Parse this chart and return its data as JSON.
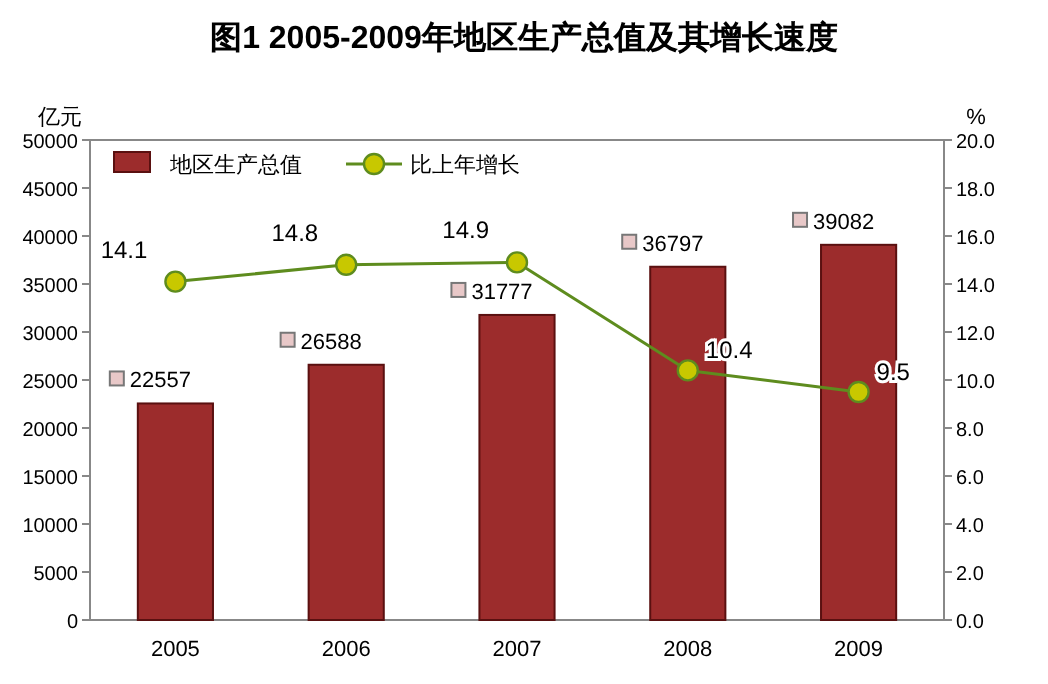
{
  "chart_data": {
    "type": "bar",
    "title": "图1 2005-2009年地区生产总值及其增长速度",
    "ylabel": "亿元",
    "y2label": "%",
    "categories": [
      "2005",
      "2006",
      "2007",
      "2008",
      "2009"
    ],
    "series": [
      {
        "name": "地区生产总值",
        "color": "#9c2c2c",
        "values": [
          22557,
          26588,
          31777,
          36797,
          39082
        ]
      },
      {
        "name": "比上年增长",
        "type": "line",
        "axis": "y2",
        "color": "#5e8c1e",
        "marker": "circle",
        "values": [
          14.1,
          14.8,
          14.9,
          10.4,
          9.5
        ]
      }
    ],
    "ylim": [
      0,
      50000
    ],
    "yticks": [
      0,
      5000,
      10000,
      15000,
      20000,
      25000,
      30000,
      35000,
      40000,
      45000,
      50000
    ],
    "y2lim": [
      0,
      20
    ],
    "y2ticks": [
      {
        "value": 0,
        "label": "0.0"
      },
      {
        "value": 2,
        "label": "2.0"
      },
      {
        "value": 4,
        "label": "4.0"
      },
      {
        "value": 6,
        "label": "6.0"
      },
      {
        "value": 8,
        "label": "8.0"
      },
      {
        "value": 10,
        "label": "10.0"
      },
      {
        "value": 12,
        "label": "12.0"
      },
      {
        "value": 14,
        "label": "14.0"
      },
      {
        "value": 16,
        "label": "16.0"
      },
      {
        "value": 18,
        "label": "18.0"
      },
      {
        "value": 20,
        "label": "20.0"
      }
    ],
    "legend": "top left",
    "data_labels": true
  }
}
